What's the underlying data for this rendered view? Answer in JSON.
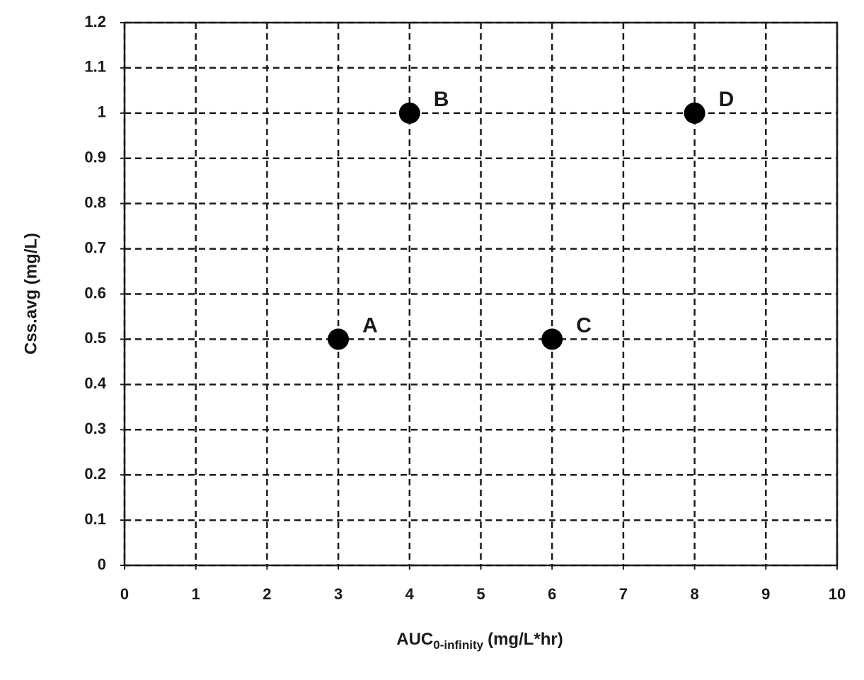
{
  "chart_data": {
    "type": "scatter",
    "x_label": {
      "main": "AUC",
      "subscript": "0-infinity",
      "unit": "(mg/L*hr)"
    },
    "y_label": "Css.avg (mg/L)",
    "series": [
      {
        "color": "#000000",
        "x": [
          3,
          4,
          6,
          8
        ],
        "values": [
          0.5,
          1,
          0.5,
          1
        ],
        "point_labels": [
          "A",
          "B",
          "C",
          "D"
        ]
      }
    ],
    "xlim": [
      0,
      10
    ],
    "xticks": [
      0,
      1,
      2,
      3,
      4,
      5,
      6,
      7,
      8,
      9,
      10
    ],
    "ylim": [
      0,
      1.2
    ],
    "yticks": [
      0,
      0.1,
      0.2,
      0.3,
      0.4,
      0.5,
      0.6,
      0.7,
      0.8,
      0.9,
      1,
      1.1,
      1.2
    ],
    "grid": true
  }
}
